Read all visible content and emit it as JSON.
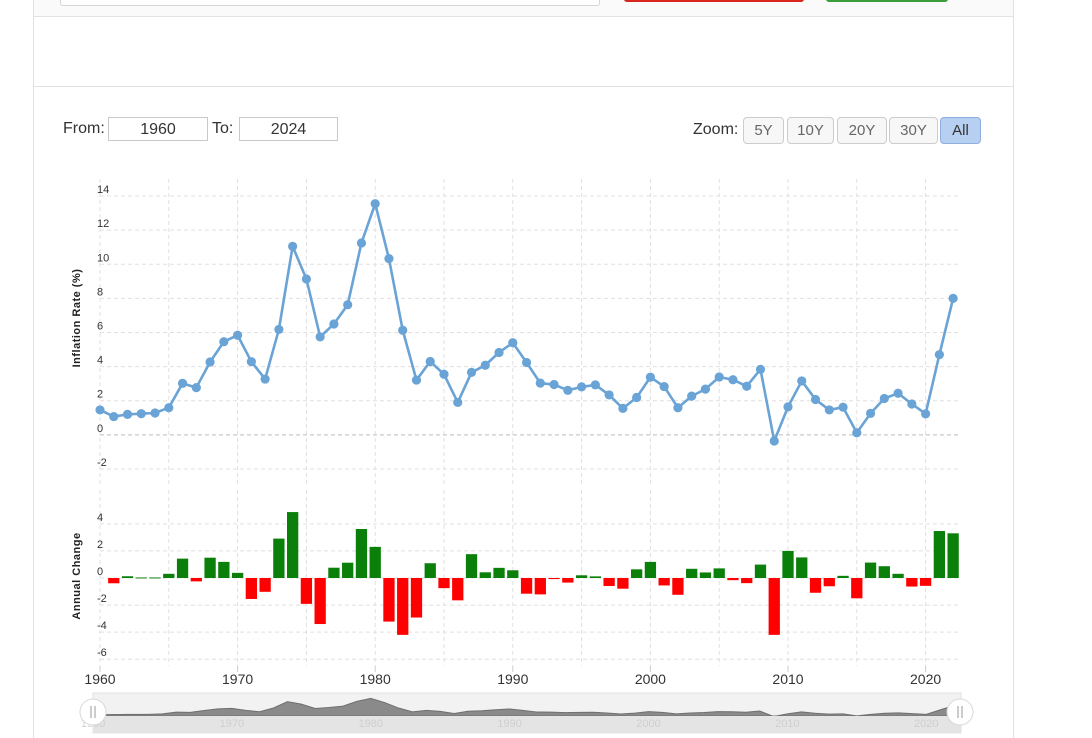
{
  "range": {
    "from_label": "From:",
    "from_value": "1960",
    "to_label": "To:",
    "to_value": "2024"
  },
  "zoom": {
    "label": "Zoom:",
    "buttons": [
      "5Y",
      "10Y",
      "20Y",
      "30Y",
      "All"
    ],
    "active": "All"
  },
  "colors": {
    "line": "#6aa3d5",
    "positive": "#0a7f0a",
    "negative": "#ff0000",
    "grid": "#e0e0e0"
  },
  "chart_data": [
    {
      "type": "line",
      "ylabel": "Inflation Rate (%)",
      "ylim": [
        -3,
        15
      ],
      "yticks": [
        -2,
        0,
        2,
        4,
        6,
        8,
        10,
        12,
        14
      ],
      "grid": true,
      "x": [
        1960,
        1961,
        1962,
        1963,
        1964,
        1965,
        1966,
        1967,
        1968,
        1969,
        1970,
        1971,
        1972,
        1973,
        1974,
        1975,
        1976,
        1977,
        1978,
        1979,
        1980,
        1981,
        1982,
        1983,
        1984,
        1985,
        1986,
        1987,
        1988,
        1989,
        1990,
        1991,
        1992,
        1993,
        1994,
        1995,
        1996,
        1997,
        1998,
        1999,
        2000,
        2001,
        2002,
        2003,
        2004,
        2005,
        2006,
        2007,
        2008,
        2009,
        2010,
        2011,
        2012,
        2013,
        2014,
        2015,
        2016,
        2017,
        2018,
        2019,
        2020,
        2021,
        2022
      ],
      "series": [
        {
          "values": [
            1.46,
            1.07,
            1.2,
            1.24,
            1.28,
            1.59,
            3.02,
            2.77,
            4.27,
            5.46,
            5.84,
            4.29,
            3.27,
            6.18,
            11.05,
            9.14,
            5.74,
            6.5,
            7.63,
            11.25,
            13.55,
            10.33,
            6.13,
            3.21,
            4.3,
            3.55,
            1.9,
            3.66,
            4.08,
            4.83,
            5.4,
            4.24,
            3.03,
            2.95,
            2.61,
            2.81,
            2.93,
            2.34,
            1.55,
            2.19,
            3.38,
            2.83,
            1.59,
            2.27,
            2.68,
            3.39,
            3.23,
            2.85,
            3.84,
            -0.36,
            1.64,
            3.16,
            2.07,
            1.46,
            1.62,
            0.12,
            1.26,
            2.13,
            2.44,
            1.81,
            1.23,
            4.7,
            8.0
          ]
        }
      ]
    },
    {
      "type": "bar",
      "ylabel": "Annual Change",
      "ylim": [
        -6.5,
        6.5
      ],
      "yticks": [
        -6,
        -4,
        -2,
        0,
        2,
        4
      ],
      "grid": true,
      "x": [
        1961,
        1962,
        1963,
        1964,
        1965,
        1966,
        1967,
        1968,
        1969,
        1970,
        1971,
        1972,
        1973,
        1974,
        1975,
        1976,
        1977,
        1978,
        1979,
        1980,
        1981,
        1982,
        1983,
        1984,
        1985,
        1986,
        1987,
        1988,
        1989,
        1990,
        1991,
        1992,
        1993,
        1994,
        1995,
        1996,
        1997,
        1998,
        1999,
        2000,
        2001,
        2002,
        2003,
        2004,
        2005,
        2006,
        2007,
        2008,
        2009,
        2010,
        2011,
        2012,
        2013,
        2014,
        2015,
        2016,
        2017,
        2018,
        2019,
        2020,
        2021,
        2022
      ],
      "series": [
        {
          "values": [
            -0.39,
            0.13,
            0.04,
            0.04,
            0.31,
            1.43,
            -0.25,
            1.5,
            1.19,
            0.38,
            -1.55,
            -1.02,
            2.91,
            4.87,
            -1.91,
            -3.4,
            0.76,
            1.13,
            3.62,
            2.3,
            -3.22,
            -4.2,
            -2.92,
            1.09,
            -0.75,
            -1.65,
            1.76,
            0.42,
            0.75,
            0.57,
            -1.16,
            -1.21,
            -0.08,
            -0.34,
            0.2,
            0.12,
            -0.59,
            -0.79,
            0.64,
            1.19,
            -0.55,
            -1.24,
            0.68,
            0.41,
            0.71,
            -0.16,
            -0.38,
            0.99,
            -4.2,
            2.0,
            1.52,
            -1.09,
            -0.61,
            0.16,
            -1.5,
            1.14,
            0.87,
            0.31,
            -0.63,
            -0.58,
            3.47,
            3.3
          ]
        }
      ]
    }
  ],
  "xaxis": {
    "ticks": [
      "1960",
      "1970",
      "1980",
      "1990",
      "2000",
      "2010",
      "2020"
    ]
  },
  "navigator": {
    "ticks": [
      "1960",
      "1970",
      "1980",
      "1990",
      "2000",
      "2010",
      "2020"
    ]
  }
}
